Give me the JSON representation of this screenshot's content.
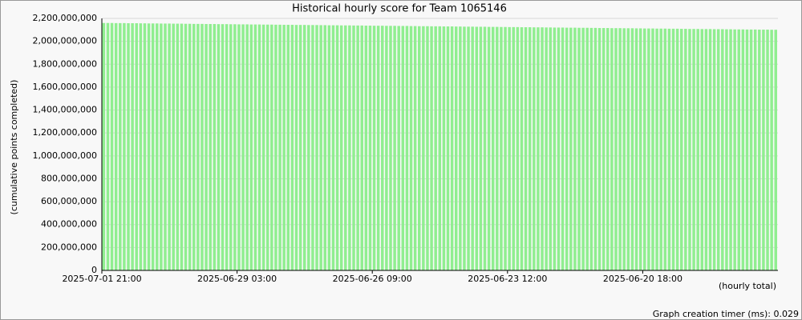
{
  "chart_data": {
    "type": "bar",
    "title": "Historical hourly score for Team 1065146",
    "y_label": "(cumulative points completed)",
    "x_label": "(hourly total)",
    "footer": "Graph creation timer (ms): 0.029",
    "color": "#90ee90",
    "grid": true,
    "ylim": [
      0,
      2200000000
    ],
    "yticks": [
      0,
      {
        "value": 200000000,
        "label": "200,000,000"
      },
      {
        "value": 400000000,
        "label": "400,000,000"
      },
      {
        "value": 600000000,
        "label": "600,000,000"
      },
      {
        "value": 800000000,
        "label": "800,000,000"
      },
      {
        "value": 1000000000,
        "label": "1,000,000,000"
      },
      {
        "value": 1200000000,
        "label": "1,200,000,000"
      },
      {
        "value": 1400000000,
        "label": "1,400,000,000"
      },
      {
        "value": 1600000000,
        "label": "1,600,000,000"
      },
      {
        "value": 1800000000,
        "label": "1,800,000,000"
      },
      {
        "value": 2000000000,
        "label": "2,000,000,000"
      },
      {
        "value": 2200000000,
        "label": "2,200,000,000"
      }
    ],
    "categories": [
      "2025-07-01 21:00",
      null,
      null,
      null,
      null,
      null,
      null,
      null,
      null,
      null,
      null,
      null,
      null,
      null,
      null,
      null,
      null,
      null,
      null,
      null,
      null,
      null,
      null,
      null,
      null,
      null,
      null,
      null,
      null,
      null,
      null,
      null,
      null,
      "2025-06-29 03:00",
      null,
      null,
      null,
      null,
      null,
      null,
      null,
      null,
      null,
      null,
      null,
      null,
      null,
      null,
      null,
      null,
      null,
      null,
      null,
      null,
      null,
      null,
      null,
      null,
      null,
      null,
      null,
      null,
      null,
      null,
      null,
      null,
      "2025-06-26 09:00",
      null,
      null,
      null,
      null,
      null,
      null,
      null,
      null,
      null,
      null,
      null,
      null,
      null,
      null,
      null,
      null,
      null,
      null,
      null,
      null,
      null,
      null,
      null,
      null,
      null,
      null,
      null,
      null,
      null,
      null,
      null,
      null,
      "2025-06-23 12:00",
      null,
      null,
      null,
      null,
      null,
      null,
      null,
      null,
      null,
      null,
      null,
      null,
      null,
      null,
      null,
      null,
      null,
      null,
      null,
      null,
      null,
      null,
      null,
      null,
      null,
      null,
      null,
      null,
      null,
      null,
      null,
      null,
      "2025-06-20 18:00",
      null,
      null,
      null,
      null,
      null,
      null,
      null,
      null,
      null,
      null,
      null,
      null,
      null,
      null,
      null,
      null,
      null,
      null,
      null,
      null,
      null,
      null,
      null,
      null,
      null,
      null,
      null,
      null,
      null,
      null,
      null,
      null
    ],
    "values": [
      2160000000,
      2160000000,
      2160000000,
      2159000000,
      2159000000,
      2159000000,
      2158000000,
      2158000000,
      2158000000,
      2157000000,
      2157000000,
      2156000000,
      2156000000,
      2156000000,
      2155000000,
      2155000000,
      2155000000,
      2154000000,
      2154000000,
      2154000000,
      2153000000,
      2153000000,
      2152000000,
      2152000000,
      2152000000,
      2151000000,
      2151000000,
      2151000000,
      2150000000,
      2150000000,
      2150000000,
      2149000000,
      2149000000,
      2148000000,
      2148000000,
      2148000000,
      2147000000,
      2147000000,
      2147000000,
      2146000000,
      2146000000,
      2146000000,
      2145000000,
      2145000000,
      2144000000,
      2144000000,
      2144000000,
      2143000000,
      2143000000,
      2143000000,
      2142000000,
      2142000000,
      2142000000,
      2141000000,
      2141000000,
      2140000000,
      2140000000,
      2140000000,
      2139000000,
      2139000000,
      2139000000,
      2138000000,
      2138000000,
      2138000000,
      2137000000,
      2137000000,
      2136000000,
      2136000000,
      2136000000,
      2135000000,
      2135000000,
      2135000000,
      2134000000,
      2134000000,
      2134000000,
      2133000000,
      2133000000,
      2132000000,
      2132000000,
      2132000000,
      2131000000,
      2131000000,
      2131000000,
      2130000000,
      2130000000,
      2130000000,
      2129000000,
      2129000000,
      2128000000,
      2128000000,
      2128000000,
      2127000000,
      2127000000,
      2127000000,
      2126000000,
      2126000000,
      2126000000,
      2125000000,
      2125000000,
      2124000000,
      2124000000,
      2124000000,
      2123000000,
      2123000000,
      2123000000,
      2122000000,
      2122000000,
      2122000000,
      2121000000,
      2121000000,
      2120000000,
      2120000000,
      2120000000,
      2119000000,
      2119000000,
      2119000000,
      2118000000,
      2118000000,
      2118000000,
      2117000000,
      2117000000,
      2116000000,
      2116000000,
      2116000000,
      2115000000,
      2115000000,
      2115000000,
      2114000000,
      2114000000,
      2114000000,
      2113000000,
      2113000000,
      2112000000,
      2112000000,
      2112000000,
      2111000000,
      2111000000,
      2111000000,
      2110000000,
      2110000000,
      2110000000,
      2109000000,
      2109000000,
      2108000000,
      2108000000,
      2108000000,
      2107000000,
      2107000000,
      2107000000,
      2106000000,
      2106000000,
      2106000000,
      2105000000,
      2105000000,
      2104000000,
      2104000000,
      2104000000,
      2103000000,
      2103000000,
      2103000000,
      2102000000,
      2102000000,
      2102000000,
      2101000000,
      2101000000
    ]
  }
}
